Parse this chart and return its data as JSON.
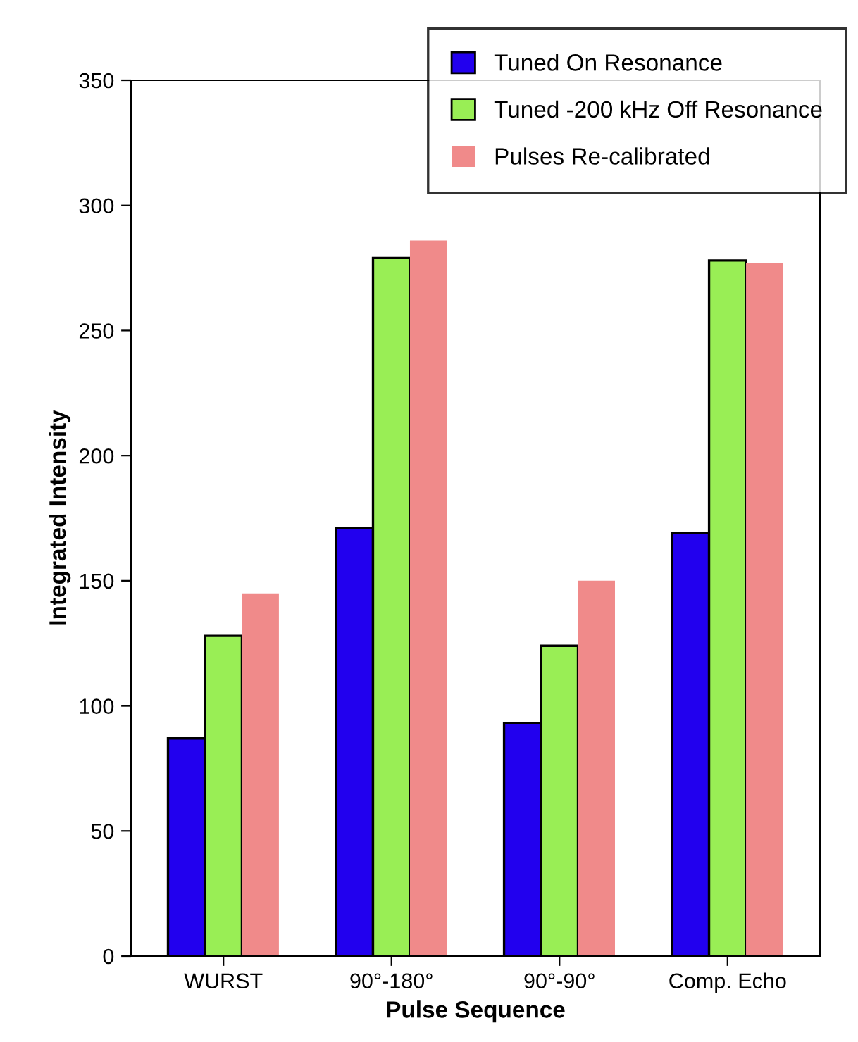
{
  "chart_data": {
    "type": "bar",
    "xlabel": "Pulse Sequence",
    "ylabel": "Integrated Intensity",
    "categories": [
      "WURST",
      "90°-180°",
      "90°-90°",
      "Comp. Echo"
    ],
    "series": [
      {
        "name": "Tuned On Resonance",
        "color": "#2200ee",
        "values": [
          87,
          171,
          93,
          169
        ]
      },
      {
        "name": "Tuned -200 kHz Off Resonance",
        "color": "#99ee55",
        "values": [
          128,
          279,
          124,
          278
        ]
      },
      {
        "name": "Pulses Re-calibrated",
        "color": "#f08a8a",
        "values": [
          145,
          286,
          150,
          277
        ]
      }
    ],
    "ylim": [
      0,
      350
    ],
    "yticks": [
      0,
      50,
      100,
      150,
      200,
      250,
      300,
      350
    ],
    "grid": false,
    "legend": "top right"
  }
}
